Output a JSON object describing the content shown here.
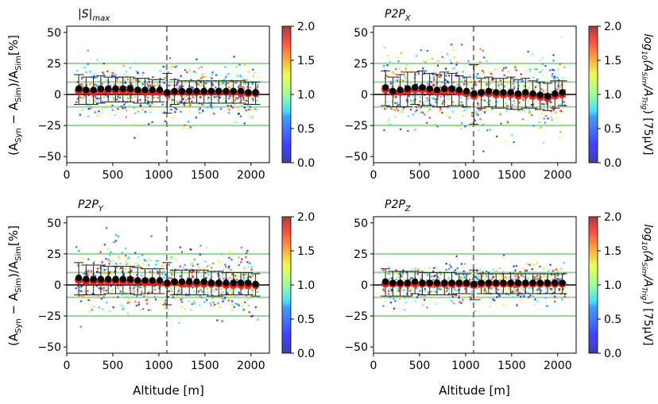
{
  "figure": {
    "ylabel": "(A_Syn − A_Sim)/A_Sim[%]",
    "xlabel": "Altitude [m]",
    "colorbar_label": "log10(A_Sim/A_Trig) [75µV]"
  },
  "colors": {
    "zero_line": "#000000",
    "guide_lines": "#8fce8f",
    "dashed_line": "#808080",
    "mean_marker": "#000000",
    "median_marker": "#e8231e",
    "colormap": "jet"
  },
  "chart_data": [
    {
      "type": "scatter",
      "title": "|S|max",
      "xlim": [
        0,
        2200
      ],
      "ylim": [
        -55,
        55
      ],
      "xticks": [
        0,
        500,
        1000,
        1500,
        2000
      ],
      "yticks": [
        -50,
        -25,
        0,
        25,
        50
      ],
      "horizontal_lines": [
        -25,
        -10,
        0,
        10,
        25
      ],
      "dashed_vline_x": 1086,
      "colorbar": {
        "range": [
          0,
          2
        ],
        "ticks": [
          "0.0",
          "0.5",
          "1.0",
          "1.5",
          "2.0"
        ]
      },
      "binned_stats": {
        "x": [
          130,
          210,
          290,
          370,
          450,
          530,
          610,
          690,
          770,
          850,
          930,
          1010,
          1090,
          1170,
          1250,
          1330,
          1410,
          1490,
          1570,
          1650,
          1730,
          1810,
          1890,
          1970,
          2050
        ],
        "mean": [
          4,
          3,
          3,
          4,
          4,
          4,
          4,
          4,
          3,
          3,
          3,
          3,
          1,
          2,
          2,
          2,
          2,
          2,
          2,
          2,
          2,
          2,
          2,
          1,
          1
        ],
        "std": [
          12,
          11,
          11,
          11,
          10,
          10,
          10,
          10,
          10,
          10,
          9,
          9,
          16,
          10,
          9,
          9,
          9,
          9,
          9,
          9,
          9,
          9,
          9,
          9,
          9
        ],
        "median": [
          3,
          3,
          2,
          3,
          3,
          3,
          3,
          3,
          3,
          2,
          2,
          2,
          1,
          2,
          2,
          2,
          2,
          2,
          2,
          2,
          2,
          2,
          1,
          1,
          1
        ]
      },
      "scatter_spread": 10
    },
    {
      "type": "scatter",
      "title": "P2P_X",
      "xlim": [
        0,
        2200
      ],
      "ylim": [
        -55,
        55
      ],
      "xticks": [
        0,
        500,
        1000,
        1500,
        2000
      ],
      "yticks": [
        -50,
        -25,
        0,
        25,
        50
      ],
      "horizontal_lines": [
        -25,
        -10,
        0,
        10,
        25
      ],
      "dashed_vline_x": 1086,
      "colorbar": {
        "range": [
          0,
          2
        ],
        "ticks": [
          "0.0",
          "0.5",
          "1.0",
          "1.5",
          "2.0"
        ],
        "label": "log10(A_Sim/A_Trig) [75µV]"
      },
      "binned_stats": {
        "x": [
          130,
          210,
          290,
          370,
          450,
          530,
          610,
          690,
          770,
          850,
          930,
          1010,
          1090,
          1170,
          1250,
          1330,
          1410,
          1490,
          1570,
          1650,
          1730,
          1810,
          1890,
          1970,
          2050
        ],
        "mean": [
          5,
          2,
          3,
          4,
          5,
          5,
          4,
          3,
          4,
          4,
          3,
          2,
          0,
          1,
          2,
          1,
          1,
          1,
          0,
          1,
          0,
          -1,
          -2,
          0,
          1
        ],
        "std": [
          14,
          12,
          13,
          14,
          13,
          14,
          13,
          13,
          14,
          13,
          12,
          12,
          24,
          12,
          12,
          12,
          12,
          13,
          12,
          12,
          11,
          11,
          11,
          11,
          10
        ],
        "median": [
          4,
          2,
          2,
          3,
          4,
          4,
          3,
          2,
          3,
          3,
          2,
          1,
          -1,
          1,
          1,
          0,
          0,
          0,
          -1,
          0,
          -1,
          -2,
          -3,
          -1,
          0
        ]
      },
      "scatter_spread": 14
    },
    {
      "type": "scatter",
      "title": "P2P_Y",
      "xlim": [
        0,
        2200
      ],
      "ylim": [
        -55,
        55
      ],
      "xticks": [
        0,
        500,
        1000,
        1500,
        2000
      ],
      "yticks": [
        -50,
        -25,
        0,
        25,
        50
      ],
      "horizontal_lines": [
        -25,
        -10,
        0,
        10,
        25
      ],
      "dashed_vline_x": 1086,
      "colorbar": {
        "range": [
          0,
          2
        ],
        "ticks": [
          "0.0",
          "0.5",
          "1.0",
          "1.5",
          "2.0"
        ]
      },
      "binned_stats": {
        "x": [
          130,
          210,
          290,
          370,
          450,
          530,
          610,
          690,
          770,
          850,
          930,
          1010,
          1090,
          1170,
          1250,
          1330,
          1410,
          1490,
          1570,
          1650,
          1730,
          1810,
          1890,
          1970,
          2050
        ],
        "mean": [
          5,
          4,
          4,
          4,
          4,
          4,
          4,
          4,
          3,
          3,
          3,
          3,
          1,
          2,
          2,
          2,
          2,
          2,
          1,
          1,
          1,
          1,
          1,
          1,
          0
        ],
        "std": [
          13,
          12,
          12,
          12,
          11,
          11,
          11,
          11,
          11,
          10,
          10,
          10,
          17,
          10,
          10,
          10,
          10,
          10,
          10,
          10,
          9,
          9,
          9,
          9,
          9
        ],
        "median": [
          4,
          3,
          3,
          3,
          3,
          3,
          3,
          3,
          3,
          2,
          2,
          2,
          1,
          2,
          1,
          1,
          1,
          1,
          1,
          1,
          0,
          0,
          0,
          0,
          0
        ]
      },
      "scatter_spread": 11
    },
    {
      "type": "scatter",
      "title": "P2P_Z",
      "xlim": [
        0,
        2200
      ],
      "ylim": [
        -55,
        55
      ],
      "xticks": [
        0,
        500,
        1000,
        1500,
        2000
      ],
      "yticks": [
        -50,
        -25,
        0,
        25,
        50
      ],
      "horizontal_lines": [
        -25,
        -10,
        0,
        10,
        25
      ],
      "dashed_vline_x": 1086,
      "colorbar": {
        "range": [
          0,
          2
        ],
        "ticks": [
          "0.0",
          "0.5",
          "1.0",
          "1.5",
          "2.0"
        ],
        "label": "log10(A_Sim/A_Trig) [75µV]"
      },
      "binned_stats": {
        "x": [
          130,
          210,
          290,
          370,
          450,
          530,
          610,
          690,
          770,
          850,
          930,
          1010,
          1090,
          1170,
          1250,
          1330,
          1410,
          1490,
          1570,
          1650,
          1730,
          1810,
          1890,
          1970,
          2050
        ],
        "mean": [
          2,
          1,
          1,
          1,
          2,
          1,
          1,
          1,
          1,
          1,
          1,
          1,
          0,
          1,
          1,
          1,
          1,
          1,
          1,
          1,
          1,
          1,
          1,
          1,
          1
        ],
        "std": [
          11,
          10,
          10,
          10,
          9,
          9,
          9,
          9,
          9,
          9,
          8,
          8,
          12,
          8,
          8,
          8,
          8,
          8,
          8,
          8,
          8,
          8,
          8,
          8,
          8
        ],
        "median": [
          1,
          1,
          1,
          1,
          1,
          1,
          1,
          1,
          1,
          1,
          1,
          1,
          0,
          1,
          1,
          1,
          1,
          1,
          1,
          1,
          1,
          1,
          1,
          1,
          1
        ]
      },
      "scatter_spread": 7
    }
  ]
}
